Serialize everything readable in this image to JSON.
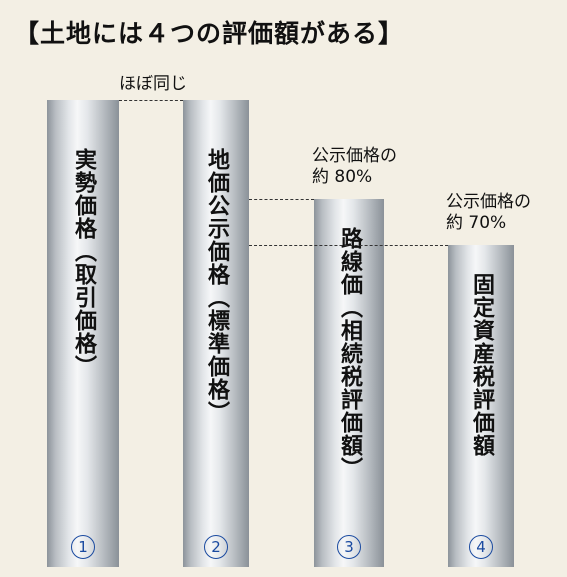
{
  "title": "【土地には４つの評価額がある】",
  "annotations": {
    "same": "ほぼ同じ",
    "ratio80_line1": "公示価格の",
    "ratio80_line2": "約 80%",
    "ratio70_line1": "公示価格の",
    "ratio70_line2": "約 70%"
  },
  "bars": [
    {
      "number": "1",
      "label": "実勢価格（取引価格）",
      "relative_level": 1.0
    },
    {
      "number": "2",
      "label": "地価公示価格（標準価格）",
      "relative_level": 1.0
    },
    {
      "number": "3",
      "label": "路線価（相続税評価額）",
      "relative_level": 0.8
    },
    {
      "number": "4",
      "label": "固定資産税評価額",
      "relative_level": 0.7
    }
  ],
  "colors": {
    "background": "#f3efe4",
    "bar_metal": "#c9ced3",
    "number_circle": "#1a4aa0"
  }
}
